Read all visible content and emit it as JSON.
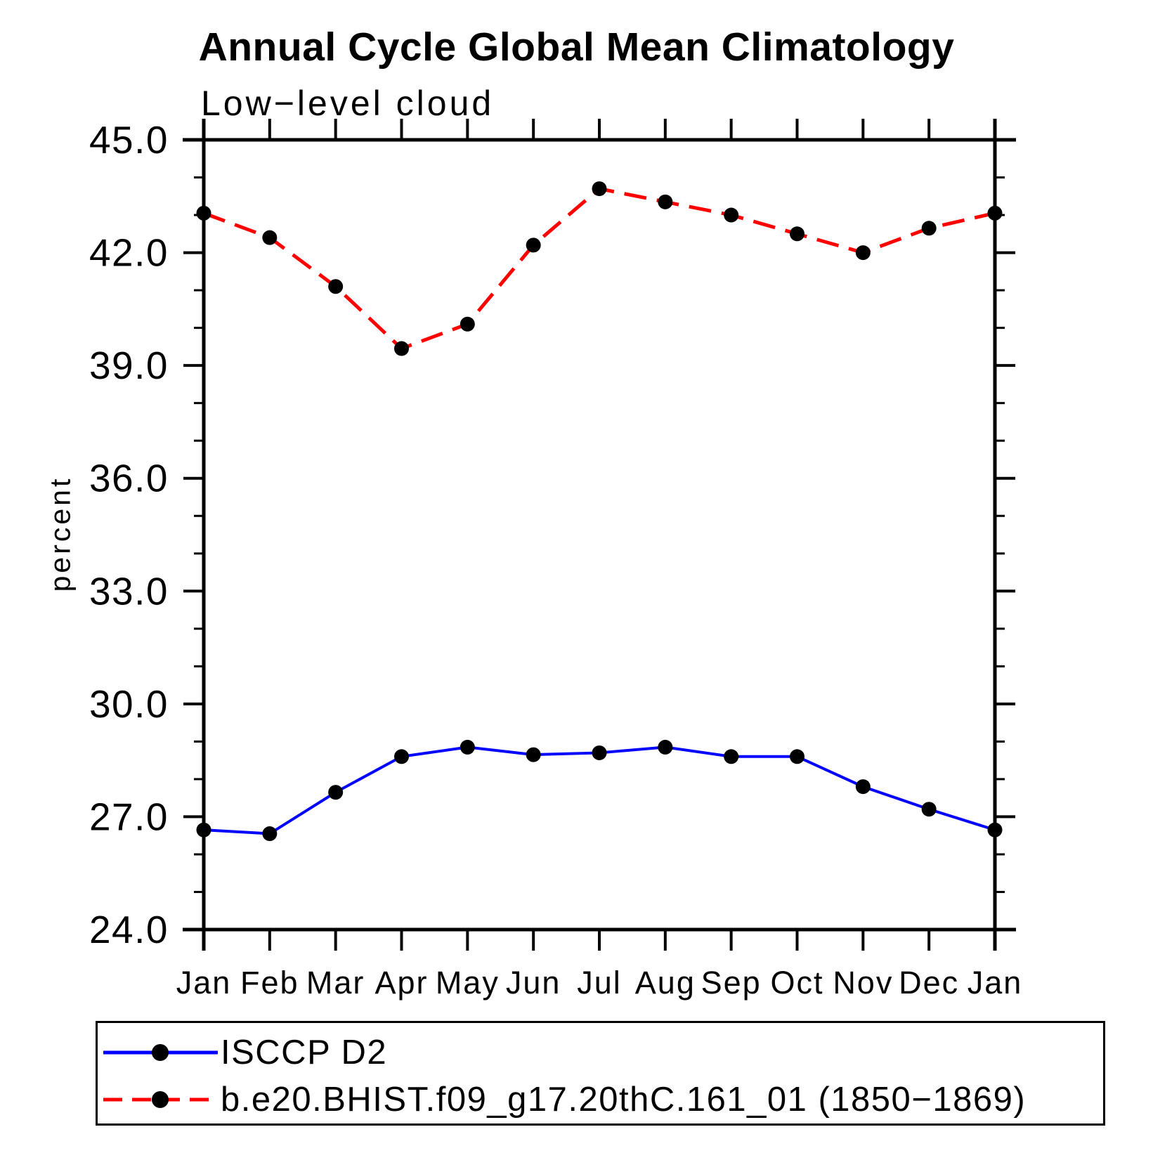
{
  "chart_data": {
    "type": "line",
    "title": "Annual Cycle Global Mean Climatology",
    "subtitle": "Low−level cloud",
    "ylabel": "percent",
    "xlabel": "",
    "categories": [
      "Jan",
      "Feb",
      "Mar",
      "Apr",
      "May",
      "Jun",
      "Jul",
      "Aug",
      "Sep",
      "Oct",
      "Nov",
      "Dec",
      "Jan"
    ],
    "ylim": [
      24.0,
      45.0
    ],
    "y_major_step": 3.0,
    "y_minor_step": 1.0,
    "y_tick_labels": [
      "45.0",
      "42.0",
      "39.0",
      "36.0",
      "33.0",
      "30.0",
      "27.0",
      "24.0"
    ],
    "grid": false,
    "legend_position": "bottom-left",
    "colors": {
      "axis": "#000000",
      "marker": "#000000"
    },
    "series": [
      {
        "name": "ISCCP D2",
        "color": "#0000FF",
        "line_style": "solid",
        "marker": "filled-circle",
        "marker_color": "#000000",
        "values": [
          26.65,
          26.55,
          27.65,
          28.6,
          28.85,
          28.65,
          28.7,
          28.85,
          28.6,
          28.6,
          27.8,
          27.2,
          26.65
        ]
      },
      {
        "name": "b.e20.BHIST.f09_g17.20thC.161_01 (1850−1869)",
        "color": "#FF0000",
        "line_style": "dashed",
        "marker": "filled-circle",
        "marker_color": "#000000",
        "values": [
          43.05,
          42.4,
          41.1,
          39.45,
          40.1,
          42.2,
          43.7,
          43.35,
          43.0,
          42.5,
          42.0,
          42.65,
          43.05
        ]
      }
    ]
  }
}
